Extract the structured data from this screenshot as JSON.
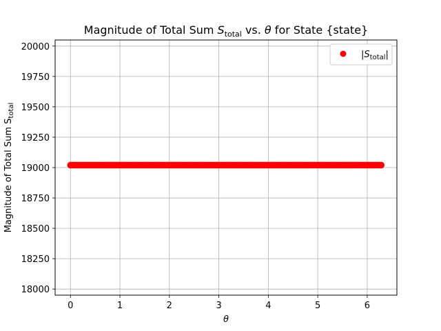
{
  "chart_data": {
    "type": "scatter",
    "title": {
      "prefix": "Magnitude of Total Sum ",
      "var": "S",
      "sub": "total",
      "middle": " vs. ",
      "theta": "θ",
      "suffix": " for State {state}"
    },
    "xlabel": "θ",
    "ylabel": {
      "text": "Magnitude of Total Sum S",
      "sub": "total"
    },
    "xlim": [
      -0.31,
      6.6
    ],
    "ylim": [
      17950,
      20050
    ],
    "xticks": [
      0,
      1,
      2,
      3,
      4,
      5,
      6
    ],
    "yticks": [
      18000,
      18250,
      18500,
      18750,
      19000,
      19250,
      19500,
      19750,
      20000
    ],
    "grid": true,
    "legend_position": "upper right",
    "series": [
      {
        "name": "|S_total|",
        "name_parts": {
          "open": "|",
          "var": "S",
          "sub": "total",
          "close": "|"
        },
        "color": "#ff0000",
        "marker": "circle",
        "x_range": [
          0,
          6.283
        ],
        "num_points": 200,
        "y_constant": 19020
      }
    ]
  }
}
